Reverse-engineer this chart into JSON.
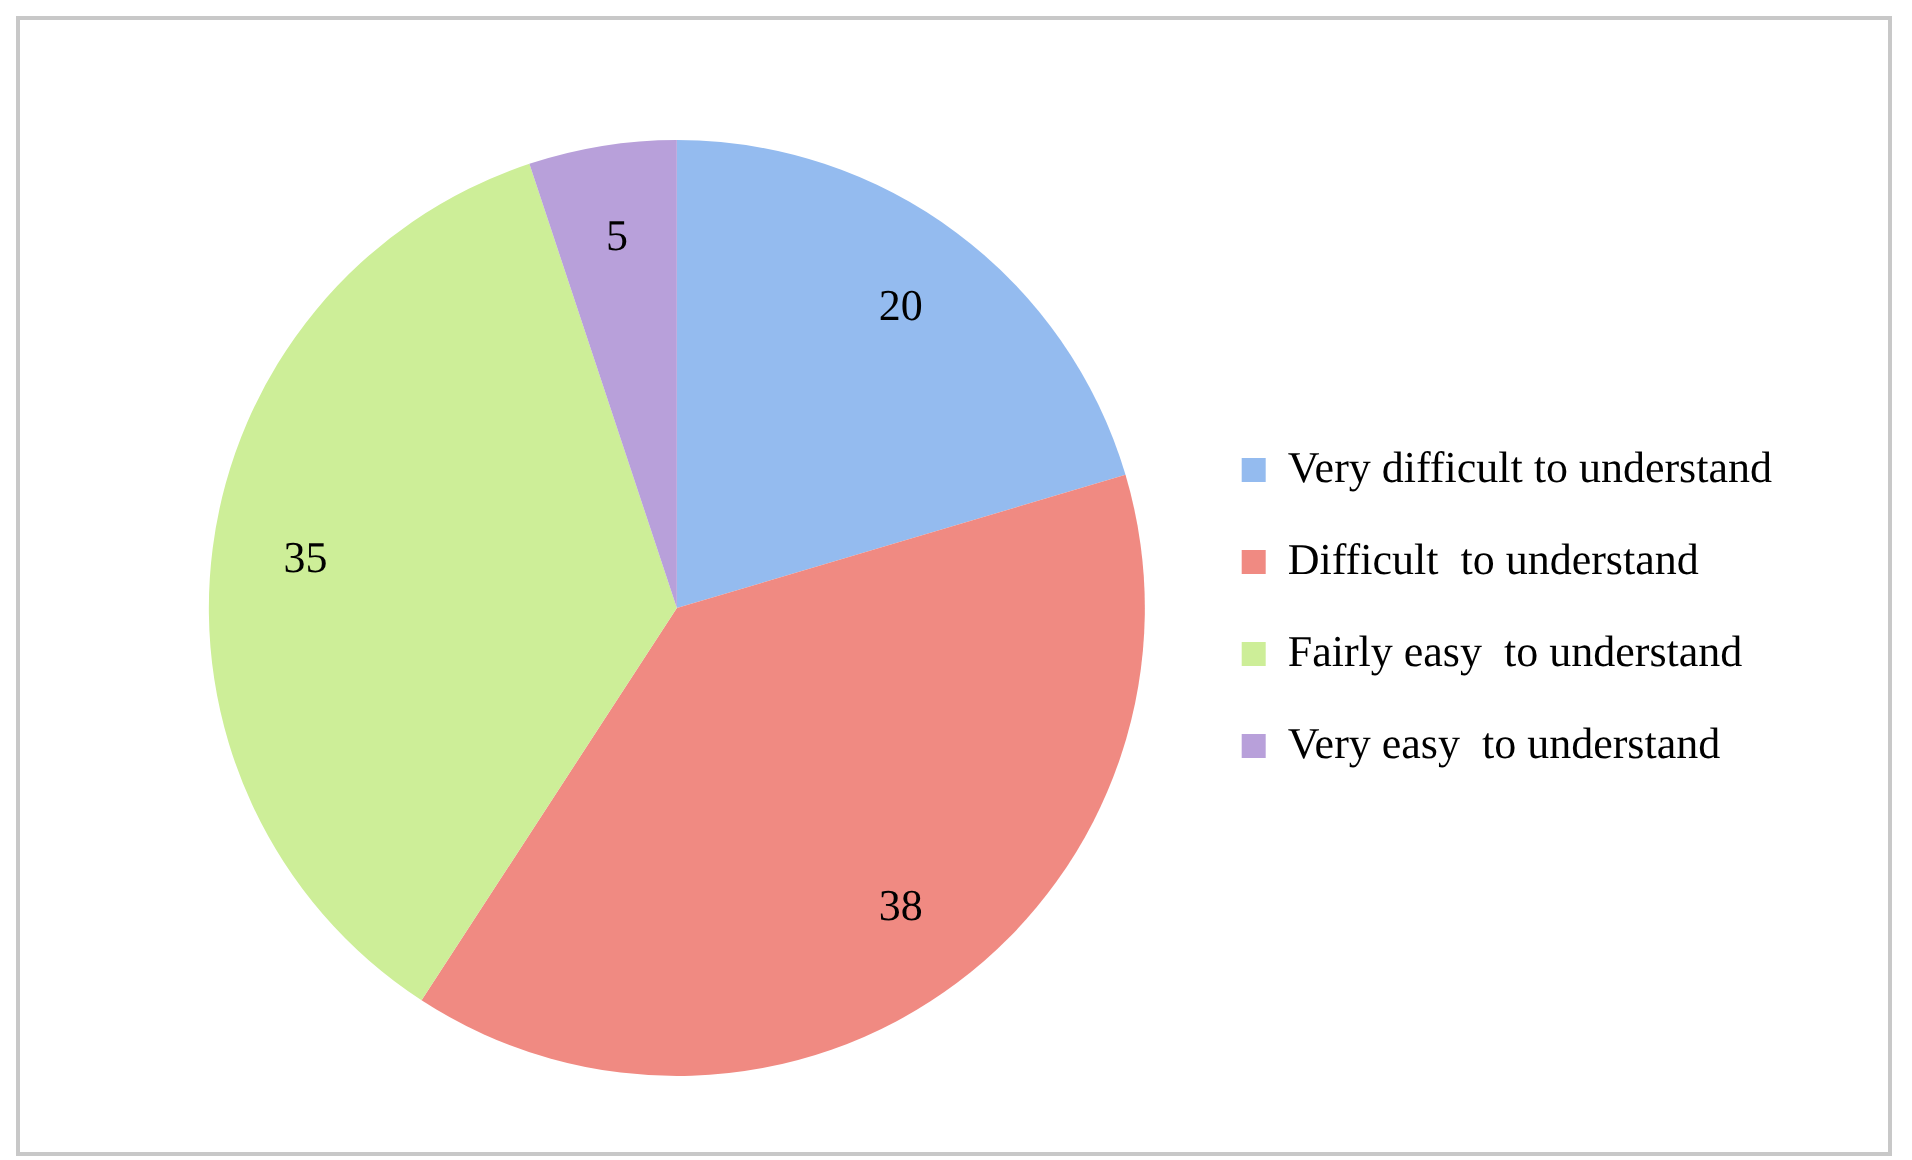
{
  "chart_data": {
    "type": "pie",
    "categories": [
      "Very difficult to understand",
      "Difficult  to understand",
      "Fairly easy  to understand",
      "Very easy  to understand"
    ],
    "values": [
      20,
      38,
      35,
      5
    ],
    "colors": [
      "#94bbef",
      "#f08a82",
      "#cdee98",
      "#b8a0da"
    ],
    "data_labels": true,
    "legend": "right"
  }
}
